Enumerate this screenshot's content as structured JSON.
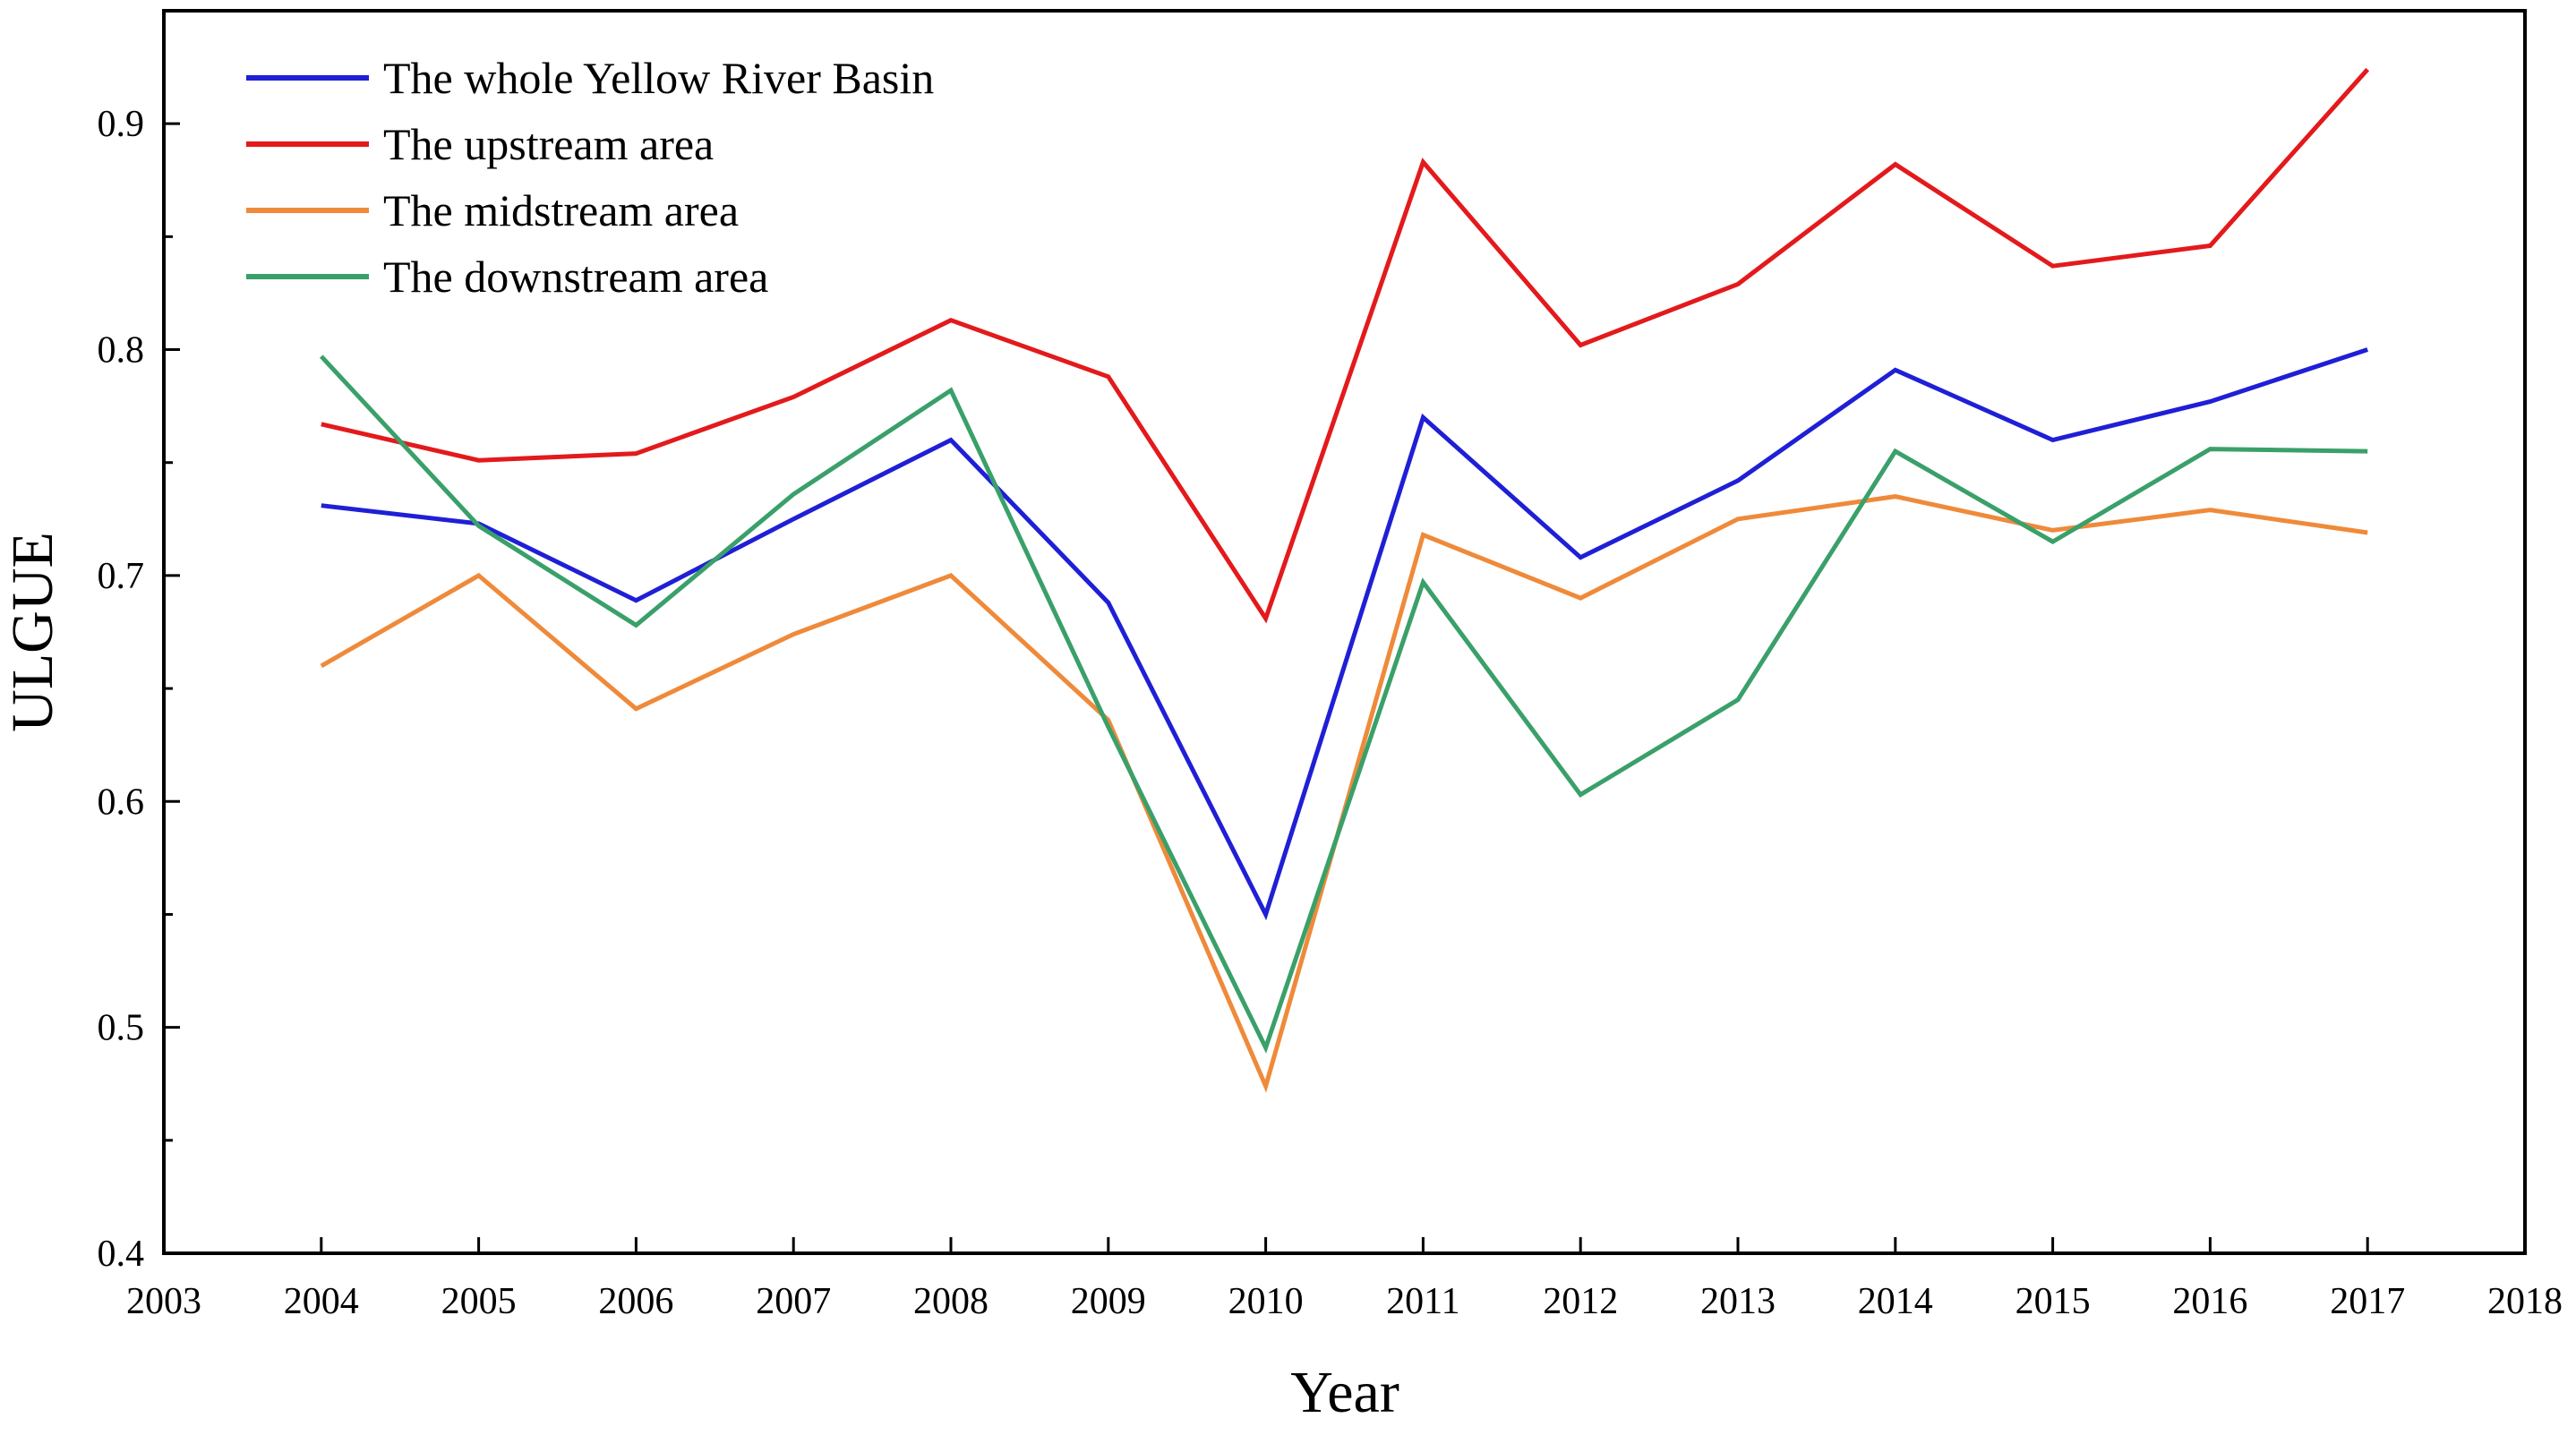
{
  "chart_data": {
    "type": "line",
    "title": "",
    "xlabel": "Year",
    "ylabel": "ULGUE",
    "xlim": [
      2003,
      2018
    ],
    "ylim": [
      0.4,
      0.95
    ],
    "xticks": [
      "2003",
      "2004",
      "2005",
      "2006",
      "2007",
      "2008",
      "2009",
      "2010",
      "2011",
      "2012",
      "2013",
      "2014",
      "2015",
      "2016",
      "2017",
      "2018"
    ],
    "yticks": [
      "0.4",
      "0.5",
      "0.6",
      "0.7",
      "0.8",
      "0.9"
    ],
    "grid": false,
    "legend_position": "top-left",
    "x": [
      2004,
      2005,
      2006,
      2007,
      2008,
      2009,
      2010,
      2011,
      2012,
      2013,
      2014,
      2015,
      2016,
      2017
    ],
    "series": [
      {
        "name": "The whole Yellow River Basin",
        "color": "#1f1fd6",
        "values": [
          0.731,
          0.723,
          0.689,
          0.725,
          0.76,
          0.688,
          0.55,
          0.77,
          0.708,
          0.742,
          0.791,
          0.76,
          0.777,
          0.8
        ]
      },
      {
        "name": "The upstream area",
        "color": "#e31a1c",
        "values": [
          0.767,
          0.751,
          0.754,
          0.779,
          0.813,
          0.788,
          0.681,
          0.883,
          0.802,
          0.829,
          0.882,
          0.837,
          0.846,
          0.924
        ]
      },
      {
        "name": "The midstream area",
        "color": "#ef8a3a",
        "values": [
          0.66,
          0.7,
          0.641,
          0.674,
          0.7,
          0.636,
          0.474,
          0.718,
          0.69,
          0.725,
          0.735,
          0.72,
          0.729,
          0.719
        ]
      },
      {
        "name": "The downstream area",
        "color": "#3aa06a",
        "values": [
          0.797,
          0.722,
          0.678,
          0.736,
          0.782,
          0.633,
          0.491,
          0.697,
          0.603,
          0.645,
          0.755,
          0.715,
          0.756,
          0.755
        ]
      }
    ]
  }
}
